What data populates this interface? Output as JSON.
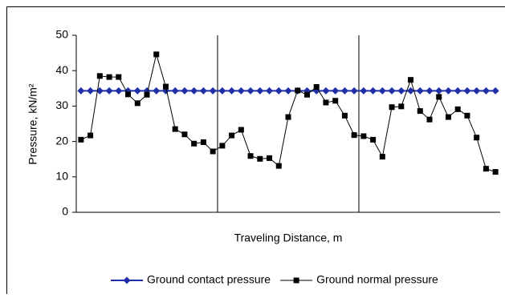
{
  "chart_data": {
    "type": "line",
    "x_label": "Traveling Distance, m",
    "y_label": "Pressure, kN/m²",
    "categories": [
      null,
      null,
      null,
      null,
      null,
      null,
      null,
      null,
      null,
      null,
      null,
      null,
      null,
      null,
      null,
      null,
      null,
      null,
      null,
      null,
      null,
      null,
      null,
      null,
      null,
      null,
      null,
      null,
      null,
      null,
      null,
      null,
      null,
      null,
      null,
      null,
      null,
      null,
      null,
      null,
      null,
      null,
      null,
      null,
      null
    ],
    "series": [
      {
        "name": "Ground contact pressure",
        "color": "#1f2fa8",
        "marker": "diamond",
        "values": [
          34.3,
          34.3,
          34.3,
          34.3,
          34.3,
          34.3,
          34.3,
          34.3,
          34.3,
          34.3,
          34.3,
          34.3,
          34.3,
          34.3,
          34.3,
          34.3,
          34.3,
          34.3,
          34.3,
          34.3,
          34.3,
          34.3,
          34.3,
          34.3,
          34.3,
          34.3,
          34.3,
          34.3,
          34.3,
          34.3,
          34.3,
          34.3,
          34.3,
          34.3,
          34.3,
          34.3,
          34.3,
          34.3,
          34.3,
          34.3,
          34.3,
          34.3,
          34.3,
          34.3,
          34.3
        ]
      },
      {
        "name": "Ground normal pressure",
        "color": "#000000",
        "marker": "square",
        "values": [
          20.5,
          21.7,
          38.5,
          38.2,
          38.2,
          33.3,
          30.8,
          33.2,
          44.6,
          35.5,
          23.5,
          22,
          19.4,
          19.8,
          17.2,
          18.8,
          21.7,
          23.3,
          15.9,
          15.1,
          15.3,
          13.1,
          26.9,
          34.4,
          33.2,
          35.4,
          31,
          31.5,
          27.3,
          21.8,
          21.5,
          20.5,
          15.7,
          29.7,
          29.9,
          37.4,
          28.6,
          26.2,
          32.6,
          26.9,
          29.1,
          27.3,
          21.1,
          12.3,
          11.4
        ]
      }
    ],
    "ylim": [
      0,
      50
    ],
    "yticks": [
      0,
      10,
      20,
      30,
      40,
      50
    ],
    "grid": false,
    "legend": "bottom"
  }
}
